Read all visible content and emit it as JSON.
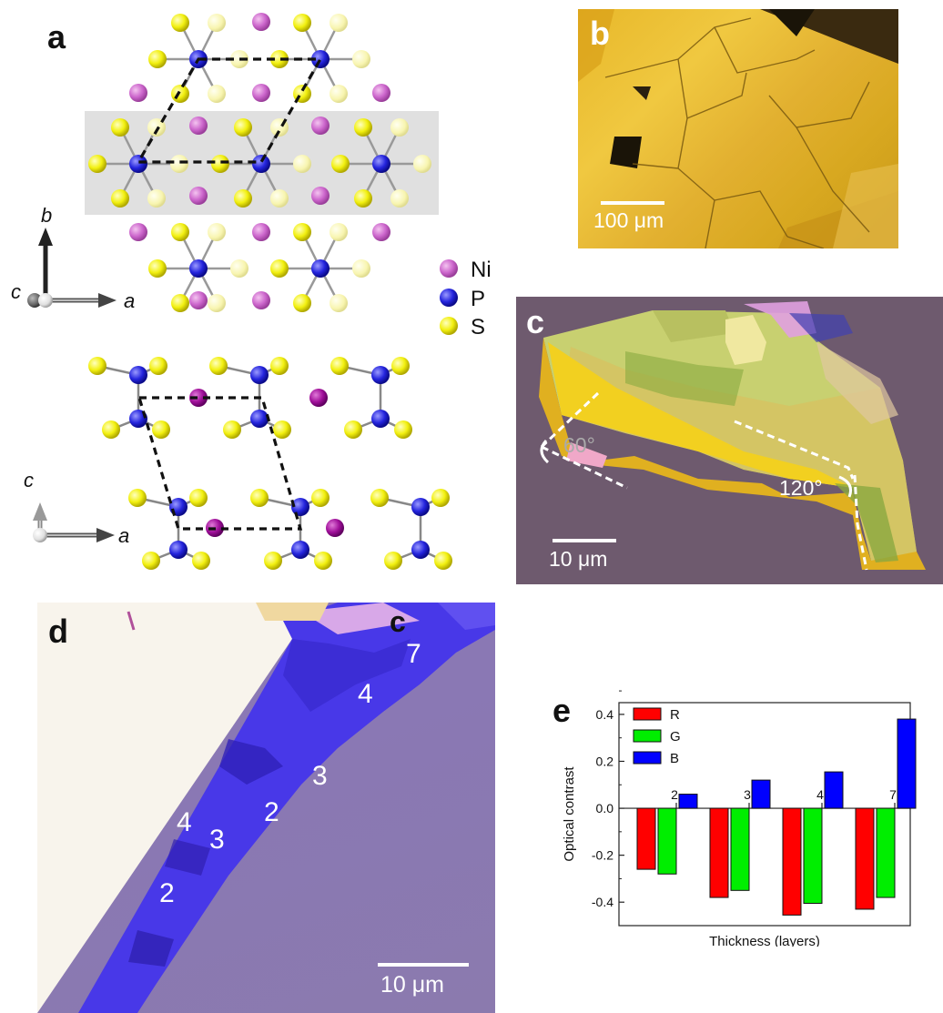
{
  "panels": {
    "a": {
      "label": "a",
      "legend": [
        {
          "label": "Ni",
          "color": "#cc66cc"
        },
        {
          "label": "P",
          "color": "#2222dd"
        },
        {
          "label": "S",
          "color": "#eeee11"
        }
      ],
      "top_axes": {
        "vertical": "b",
        "depth": "c",
        "horizontal": "a"
      },
      "bottom_axes": {
        "vertical": "c",
        "horizontal": "a"
      }
    },
    "b": {
      "label": "b",
      "scalebar": "100 μm"
    },
    "c": {
      "label": "c",
      "scalebar": "10 μm",
      "angle1": "60°",
      "angle2": "120°"
    },
    "d": {
      "label": "d",
      "scalebar": "10 μm",
      "corner_label": "c",
      "layer_labels": [
        "7",
        "4",
        "3",
        "2",
        "4",
        "3",
        "2"
      ]
    },
    "e": {
      "label": "e"
    }
  },
  "chart_data": {
    "type": "bar",
    "categories": [
      "2",
      "3",
      "4",
      "7"
    ],
    "series": [
      {
        "name": "R",
        "color": "#ff0000",
        "values": [
          -0.26,
          -0.38,
          -0.455,
          -0.43
        ]
      },
      {
        "name": "G",
        "color": "#00ee00",
        "values": [
          -0.28,
          -0.35,
          -0.405,
          -0.38
        ]
      },
      {
        "name": "B",
        "color": "#0000ff",
        "values": [
          0.06,
          0.12,
          0.155,
          0.38
        ]
      }
    ],
    "xlabel": "Thickness  (layers)",
    "ylabel": "Optical contrast",
    "ylim": [
      -0.5,
      0.45
    ],
    "yticks": [
      "0.4",
      "0.2",
      "0.0",
      "-0.2",
      "-0.4"
    ],
    "legend_position": "top-left"
  }
}
